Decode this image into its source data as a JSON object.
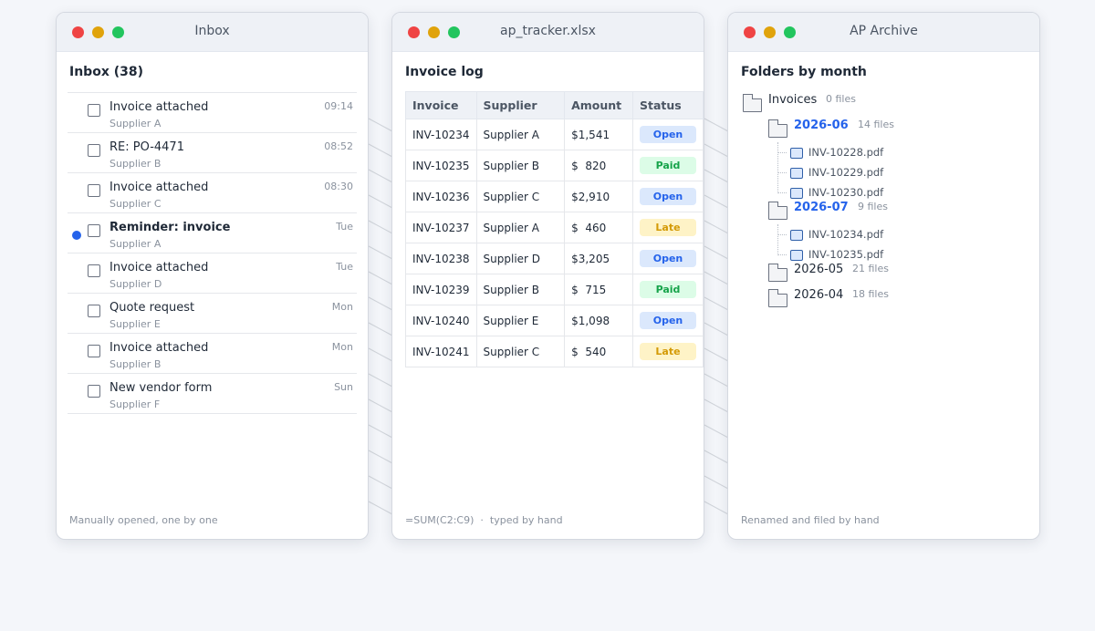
{
  "windows": {
    "inbox": {
      "title": "Inbox",
      "heading": "Inbox (38)",
      "footer": "Manually opened, one by one",
      "messages": [
        {
          "subject": "Invoice attached",
          "sender": "Supplier A",
          "time": "09:14"
        },
        {
          "subject": "RE: PO-4471",
          "sender": "Supplier B",
          "time": "08:52"
        },
        {
          "subject": "Invoice attached",
          "sender": "Supplier C",
          "time": "08:30"
        },
        {
          "subject": "Reminder: invoice",
          "sender": "Supplier A",
          "time": "Tue"
        },
        {
          "subject": "Invoice attached",
          "sender": "Supplier D",
          "time": "Tue"
        },
        {
          "subject": "Quote request",
          "sender": "Supplier E",
          "time": "Mon"
        },
        {
          "subject": "Invoice attached",
          "sender": "Supplier B",
          "time": "Mon"
        },
        {
          "subject": "New vendor form",
          "sender": "Supplier F",
          "time": "Sun"
        }
      ]
    },
    "sheet": {
      "title": "ap_tracker.xlsx",
      "heading": "Invoice log",
      "footer_formula": "=SUM(C2:C9)",
      "footer_sep": "·",
      "footer_note": "typed by hand",
      "columns": [
        "Invoice",
        "Supplier",
        "Amount",
        "Status"
      ],
      "rows": [
        {
          "invoice": "INV-10234",
          "supplier": "Supplier A",
          "amount": "$1,541",
          "status": "Open"
        },
        {
          "invoice": "INV-10235",
          "supplier": "Supplier B",
          "amount": "$  820",
          "status": "Paid"
        },
        {
          "invoice": "INV-10236",
          "supplier": "Supplier C",
          "amount": "$2,910",
          "status": "Open"
        },
        {
          "invoice": "INV-10237",
          "supplier": "Supplier A",
          "amount": "$  460",
          "status": "Late"
        },
        {
          "invoice": "INV-10238",
          "supplier": "Supplier D",
          "amount": "$3,205",
          "status": "Open"
        },
        {
          "invoice": "INV-10239",
          "supplier": "Supplier B",
          "amount": "$  715",
          "status": "Paid"
        },
        {
          "invoice": "INV-10240",
          "supplier": "Supplier E",
          "amount": "$1,098",
          "status": "Open"
        },
        {
          "invoice": "INV-10241",
          "supplier": "Supplier C",
          "amount": "$  540",
          "status": "Late"
        }
      ]
    },
    "archive": {
      "title": "AP Archive",
      "heading": "Folders by month",
      "footer": "Renamed and filed by hand",
      "root": {
        "name": "Invoices",
        "count": "0 files"
      },
      "folders": [
        {
          "name": "2026-06",
          "count": "14 files",
          "files": [
            "INV-10228.pdf",
            "INV-10229.pdf",
            "INV-10230.pdf"
          ]
        },
        {
          "name": "2026-07",
          "count": "9 files",
          "files": [
            "INV-10234.pdf",
            "INV-10235.pdf"
          ]
        },
        {
          "name": "2026-05",
          "count": "21 files",
          "files": []
        },
        {
          "name": "2026-04",
          "count": "18 files",
          "files": []
        }
      ]
    }
  },
  "colors": {
    "open": "#2563eb",
    "paid": "#16a34a",
    "late": "#d49a06",
    "unread": "#2563eb",
    "close": "#ef4444",
    "minimize": "#e0a30b",
    "maximize": "#22c55e"
  }
}
